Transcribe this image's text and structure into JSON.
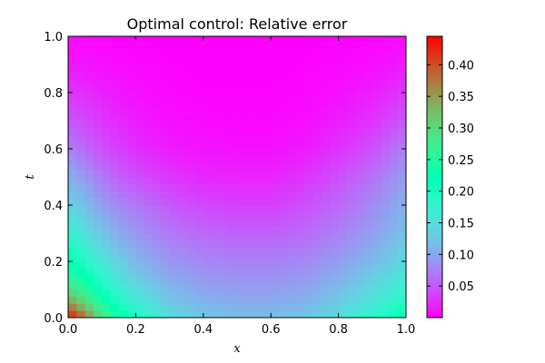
{
  "chart_data": {
    "type": "heatmap",
    "title": "Optimal control: Relative error",
    "xlabel": "x",
    "ylabel": "t",
    "xlim": [
      0.0,
      1.0
    ],
    "ylim": [
      0.0,
      1.0
    ],
    "x_ticks": [
      "0.0",
      "0.2",
      "0.4",
      "0.6",
      "0.8",
      "1.0"
    ],
    "y_ticks": [
      "0.0",
      "0.2",
      "0.4",
      "0.6",
      "0.8",
      "1.0"
    ],
    "x_tick_values": [
      0.0,
      0.2,
      0.4,
      0.6,
      0.8,
      1.0
    ],
    "y_tick_values": [
      0.0,
      0.2,
      0.4,
      0.6,
      0.8,
      1.0
    ],
    "colormap": "rainbow",
    "grid": [
      40,
      40
    ],
    "value_range": [
      0.0,
      0.445
    ],
    "colorbar_ticks": [
      "0.05",
      "0.10",
      "0.15",
      "0.20",
      "0.25",
      "0.30",
      "0.35",
      "0.40"
    ],
    "colorbar_tick_values": [
      0.05,
      0.1,
      0.15,
      0.2,
      0.25,
      0.3,
      0.35,
      0.4
    ],
    "profile": {
      "x": [
        0.0,
        0.05,
        0.1,
        0.15,
        0.2,
        0.3,
        0.4,
        0.5,
        0.6,
        0.7,
        0.8,
        0.9,
        0.95,
        1.0
      ],
      "t": [
        0.0,
        0.05,
        0.1,
        0.15,
        0.2,
        0.3,
        0.4,
        0.5,
        0.6,
        0.7,
        0.8,
        0.9,
        1.0
      ],
      "values": [
        [
          0.445,
          0.38,
          0.3,
          0.24,
          0.2,
          0.15,
          0.13,
          0.12,
          0.12,
          0.13,
          0.15,
          0.19,
          0.21,
          0.23
        ],
        [
          0.36,
          0.31,
          0.25,
          0.2,
          0.17,
          0.13,
          0.11,
          0.105,
          0.105,
          0.11,
          0.13,
          0.16,
          0.18,
          0.2
        ],
        [
          0.3,
          0.26,
          0.21,
          0.17,
          0.15,
          0.115,
          0.1,
          0.095,
          0.095,
          0.1,
          0.12,
          0.145,
          0.16,
          0.18
        ],
        [
          0.26,
          0.22,
          0.18,
          0.15,
          0.13,
          0.1,
          0.09,
          0.085,
          0.085,
          0.09,
          0.105,
          0.13,
          0.145,
          0.16
        ],
        [
          0.23,
          0.19,
          0.16,
          0.135,
          0.115,
          0.09,
          0.08,
          0.075,
          0.075,
          0.08,
          0.095,
          0.115,
          0.13,
          0.145
        ],
        [
          0.18,
          0.15,
          0.125,
          0.105,
          0.09,
          0.07,
          0.06,
          0.055,
          0.055,
          0.06,
          0.075,
          0.095,
          0.11,
          0.125
        ],
        [
          0.14,
          0.12,
          0.095,
          0.08,
          0.07,
          0.05,
          0.04,
          0.035,
          0.035,
          0.045,
          0.06,
          0.08,
          0.095,
          0.11
        ],
        [
          0.11,
          0.09,
          0.07,
          0.055,
          0.045,
          0.03,
          0.022,
          0.02,
          0.02,
          0.028,
          0.045,
          0.065,
          0.08,
          0.095
        ],
        [
          0.075,
          0.06,
          0.045,
          0.035,
          0.025,
          0.015,
          0.01,
          0.008,
          0.008,
          0.014,
          0.028,
          0.045,
          0.06,
          0.075
        ],
        [
          0.05,
          0.04,
          0.03,
          0.022,
          0.015,
          0.008,
          0.005,
          0.004,
          0.004,
          0.007,
          0.015,
          0.028,
          0.04,
          0.05
        ],
        [
          0.03,
          0.025,
          0.018,
          0.012,
          0.008,
          0.004,
          0.002,
          0.002,
          0.002,
          0.004,
          0.008,
          0.016,
          0.024,
          0.032
        ],
        [
          0.012,
          0.01,
          0.008,
          0.006,
          0.004,
          0.002,
          0.001,
          0.001,
          0.001,
          0.002,
          0.004,
          0.007,
          0.01,
          0.014
        ],
        [
          0.005,
          0.004,
          0.003,
          0.002,
          0.002,
          0.001,
          0.001,
          0.0,
          0.0,
          0.001,
          0.002,
          0.003,
          0.004,
          0.006
        ]
      ]
    }
  }
}
